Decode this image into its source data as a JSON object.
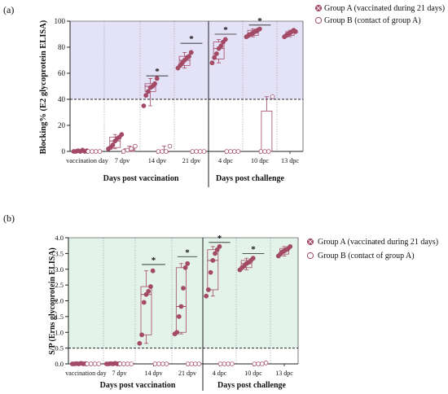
{
  "panels": [
    {
      "panel_label": "(a)",
      "ylabel": "Blocking% (E2 glycoprotein ELISA)",
      "legend": [
        "Group A (vaccinated during 21 days)",
        "Group B (contact of group A)"
      ],
      "section_labels": [
        "Days post vaccination",
        "Days post challenge"
      ],
      "star": "*"
    },
    {
      "panel_label": "(b)",
      "ylabel": "S/P (Erns glycoprotein ELISA)",
      "legend": [
        "Group A (vaccinated during 21 days)",
        "Group B (contact of group A)"
      ],
      "section_labels": [
        "Days post vaccination",
        "Days post challenge"
      ],
      "star": "*"
    }
  ],
  "chart_data": [
    {
      "type": "box",
      "title": "",
      "ylabel": "Blocking% (E2 glycoprotein ELISA)",
      "ylim": [
        0,
        100
      ],
      "yticks": [
        0,
        20,
        40,
        60,
        80,
        100
      ],
      "threshold": 40,
      "categories": [
        "vaccination day",
        "7 dpv",
        "14 dpv",
        "21 dpv",
        "4 dpc",
        "10 dpc",
        "13 dpc"
      ],
      "shaded_region": [
        40,
        100
      ],
      "shade_color": "#e4e2f6",
      "series": [
        {
          "name": "Group A (vaccinated during 21 days)",
          "color": "#a34a67",
          "marker": "filled",
          "boxes": [
            {
              "min": 0,
              "q1": 0,
              "median": 0,
              "q3": 0.5,
              "max": 1,
              "points": [
                0,
                0,
                0.5,
                0,
                1,
                0,
                0.5
              ]
            },
            {
              "min": 2,
              "q1": 3,
              "median": 8,
              "q3": 11,
              "max": 13,
              "points": [
                2,
                3,
                5,
                8,
                10,
                11,
                13
              ]
            },
            {
              "min": 35,
              "q1": 46,
              "median": 50,
              "q3": 52,
              "max": 56,
              "points": [
                35,
                43,
                46,
                49,
                50,
                52,
                56
              ]
            },
            {
              "min": 64,
              "q1": 66,
              "median": 70,
              "q3": 73,
              "max": 76,
              "points": [
                64,
                66,
                68,
                70,
                72,
                73,
                76
              ]
            },
            {
              "min": 68,
              "q1": 71,
              "median": 79,
              "q3": 84,
              "max": 86,
              "points": [
                68,
                72,
                75,
                79,
                81,
                84,
                86
              ]
            },
            {
              "min": 88,
              "q1": 89,
              "median": 91,
              "q3": 93,
              "max": 94,
              "points": [
                88,
                89,
                90,
                91,
                92,
                93,
                94
              ]
            },
            {
              "min": 88,
              "q1": 89,
              "median": 91,
              "q3": 92,
              "max": 93,
              "points": [
                88,
                89,
                90,
                91,
                92,
                93,
                92
              ]
            }
          ]
        },
        {
          "name": "Group B (contact of group A)",
          "color": "#a34a67",
          "marker": "open",
          "boxes": [
            {
              "min": 0,
              "q1": 0,
              "median": 0,
              "q3": 0,
              "max": 0,
              "points": [
                0,
                0,
                0,
                0
              ]
            },
            {
              "min": 0,
              "q1": 0,
              "median": 1,
              "q3": 2,
              "max": 4,
              "points": [
                0,
                1,
                2,
                4
              ]
            },
            {
              "min": 0,
              "q1": 0,
              "median": 0,
              "q3": 0,
              "max": 4,
              "points": [
                0,
                0,
                0,
                4
              ]
            },
            {
              "min": 0,
              "q1": 0,
              "median": 0,
              "q3": 0,
              "max": 0,
              "points": [
                0,
                0,
                0,
                0
              ]
            },
            {
              "min": 0,
              "q1": 0,
              "median": 0,
              "q3": 0,
              "max": 0,
              "points": [
                0,
                0,
                0,
                0
              ]
            },
            {
              "min": 0,
              "q1": 0,
              "median": 0,
              "q3": 31,
              "max": 42,
              "points": [
                0,
                0,
                0,
                42
              ]
            },
            null
          ]
        }
      ],
      "significance": [
        {
          "category": "14 dpv",
          "level": 58
        },
        {
          "category": "21 dpv",
          "level": 83
        },
        {
          "category": "4 dpc",
          "level": 90
        },
        {
          "category": "10 dpc",
          "level": 97
        }
      ]
    },
    {
      "type": "box",
      "title": "",
      "ylabel": "S/P (Erns glycoprotein ELISA)",
      "ylim": [
        0,
        4
      ],
      "yticks": [
        0.0,
        0.5,
        1.0,
        1.5,
        2.0,
        2.5,
        3.0,
        3.5,
        4.0
      ],
      "threshold": 0.5,
      "categories": [
        "vaccination day",
        "7 dpv",
        "14 dpv",
        "21 dpv",
        "4 dpc",
        "10 dpc",
        "13 dpc"
      ],
      "shaded_region": [
        0.5,
        4.0
      ],
      "shade_color": "#e3f3ea",
      "series": [
        {
          "name": "Group A (vaccinated during 21 days)",
          "color": "#a34a67",
          "marker": "filled",
          "boxes": [
            {
              "min": 0,
              "q1": 0,
              "median": 0,
              "q3": 0.01,
              "max": 0.02,
              "points": [
                0,
                0,
                0.01,
                0,
                0.02,
                0,
                0.01
              ]
            },
            {
              "min": 0,
              "q1": 0,
              "median": 0,
              "q3": 0.01,
              "max": 0.02,
              "points": [
                0,
                0,
                0.01,
                0,
                0.02,
                0,
                0.01
              ]
            },
            {
              "min": 0.65,
              "q1": 0.92,
              "median": 2.2,
              "q3": 2.45,
              "max": 2.95,
              "points": [
                0.65,
                0.92,
                1.95,
                2.2,
                2.3,
                2.45,
                2.95
              ]
            },
            {
              "min": 0.95,
              "q1": 1.0,
              "median": 1.82,
              "q3": 3.05,
              "max": 3.18,
              "points": [
                0.95,
                1.0,
                1.5,
                1.82,
                2.4,
                3.05,
                3.18
              ]
            },
            {
              "min": 2.15,
              "q1": 2.35,
              "median": 3.28,
              "q3": 3.62,
              "max": 3.72,
              "points": [
                2.15,
                2.35,
                2.9,
                3.28,
                3.5,
                3.62,
                3.72
              ]
            },
            {
              "min": 2.98,
              "q1": 3.05,
              "median": 3.18,
              "q3": 3.28,
              "max": 3.35,
              "points": [
                2.98,
                3.05,
                3.1,
                3.18,
                3.22,
                3.28,
                3.35
              ]
            },
            {
              "min": 3.42,
              "q1": 3.48,
              "median": 3.58,
              "q3": 3.66,
              "max": 3.72,
              "points": [
                3.42,
                3.48,
                3.55,
                3.58,
                3.62,
                3.66,
                3.72
              ]
            }
          ]
        },
        {
          "name": "Group B (contact of group A)",
          "color": "#a34a67",
          "marker": "open",
          "boxes": [
            {
              "min": 0,
              "q1": 0,
              "median": 0,
              "q3": 0,
              "max": 0,
              "points": [
                0,
                0,
                0,
                0
              ]
            },
            {
              "min": 0,
              "q1": 0,
              "median": 0,
              "q3": 0,
              "max": 0,
              "points": [
                0,
                0,
                0,
                0
              ]
            },
            {
              "min": 0,
              "q1": 0,
              "median": 0,
              "q3": 0,
              "max": 0,
              "points": [
                0,
                0,
                0,
                0
              ]
            },
            {
              "min": 0,
              "q1": 0,
              "median": 0,
              "q3": 0,
              "max": 0,
              "points": [
                0,
                0,
                0,
                0
              ]
            },
            {
              "min": 0,
              "q1": 0,
              "median": 0,
              "q3": 0,
              "max": 0,
              "points": [
                0,
                0,
                0,
                0
              ]
            },
            {
              "min": 0,
              "q1": 0,
              "median": 0,
              "q3": 0.01,
              "max": 0.03,
              "points": [
                0,
                0,
                0,
                0.03
              ]
            },
            null
          ]
        }
      ],
      "significance": [
        {
          "category": "14 dpv",
          "level": 3.15
        },
        {
          "category": "21 dpv",
          "level": 3.4
        },
        {
          "category": "4 dpc",
          "level": 3.85
        },
        {
          "category": "10 dpc",
          "level": 3.5
        }
      ]
    }
  ]
}
